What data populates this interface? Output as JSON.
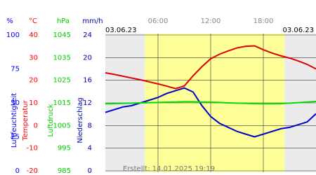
{
  "chart_data": {
    "type": "line",
    "date_left": "03.06.23",
    "date_right": "03.06.23",
    "footer": "Erstellt: 14.01.2025 19:19",
    "xlim": [
      0,
      24
    ],
    "xticks": [
      {
        "value": 6,
        "label": "06:00"
      },
      {
        "value": 12,
        "label": "12:00"
      },
      {
        "value": 18,
        "label": "18:00"
      }
    ],
    "daylight": [
      4.5,
      20.4
    ],
    "grid": true,
    "axes": [
      {
        "unit": "%",
        "label": "Luftfeuchtigkeit",
        "color": "#0000ff",
        "ylim": [
          0,
          100
        ],
        "yticks": [
          0,
          25,
          50,
          75,
          100
        ]
      },
      {
        "unit": "°C",
        "label": "Temperatur",
        "color": "#ff0000",
        "ylim": [
          -20,
          40
        ],
        "yticks": [
          -20,
          -10,
          0,
          10,
          20,
          30,
          40
        ]
      },
      {
        "unit": "hPa",
        "label": "Luftdruck",
        "color": "#00cc00",
        "ylim": [
          985,
          1045
        ],
        "yticks": [
          985,
          995,
          1005,
          1015,
          1025,
          1035,
          1045
        ]
      },
      {
        "unit": "mm/h",
        "label": "Niederschlag",
        "color": "#0000aa",
        "ylim": [
          0,
          24
        ],
        "yticks": [
          0,
          4,
          8,
          12,
          16,
          20,
          24
        ]
      }
    ],
    "x": [
      0,
      1,
      2,
      3,
      4,
      5,
      6,
      7,
      8,
      9,
      10,
      11,
      12,
      13,
      14,
      15,
      16,
      17,
      18,
      19,
      20,
      21,
      22,
      23,
      24
    ],
    "series": [
      {
        "axis": 1,
        "color": "#e00000",
        "values": [
          23.3,
          22.6,
          21.8,
          21,
          20.2,
          19.3,
          18.4,
          17.4,
          16.3,
          17.5,
          22,
          26,
          29.5,
          31.5,
          33,
          34.3,
          35,
          35.2,
          33.5,
          32,
          30.8,
          29.8,
          28.5,
          27,
          25
        ]
      },
      {
        "axis": 0,
        "color": "#0000cc",
        "values": [
          43,
          45,
          47,
          48,
          50,
          52,
          54,
          57,
          59,
          61,
          58,
          48,
          40,
          35,
          32,
          29,
          27,
          25,
          27,
          29,
          31,
          32,
          34,
          36,
          42
        ]
      },
      {
        "axis": 2,
        "color": "#00dd00",
        "values": [
          1014.6,
          1014.7,
          1014.8,
          1014.9,
          1015,
          1015.1,
          1015.2,
          1015.3,
          1015.4,
          1015.5,
          1015.5,
          1015.4,
          1015.3,
          1015.2,
          1015,
          1014.9,
          1014.8,
          1014.7,
          1014.6,
          1014.6,
          1014.7,
          1014.9,
          1015.1,
          1015.4,
          1015.6
        ]
      }
    ]
  }
}
